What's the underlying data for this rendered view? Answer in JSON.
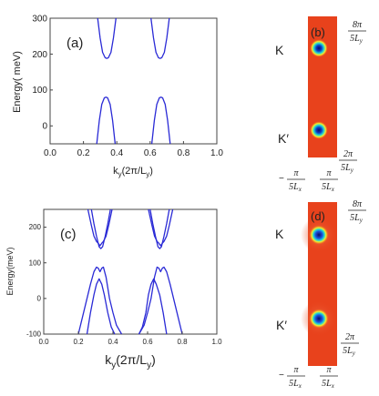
{
  "chart_data": [
    {
      "panel": "a",
      "type": "line",
      "panel_label": "(a)",
      "xlabel_main": "k",
      "xlabel_sub": "y",
      "xlabel_paren_open": "(2π/L",
      "xlabel_paren_close": ")",
      "ylabel": "Energy( meV)",
      "xlim": [
        0.0,
        1.0
      ],
      "ylim": [
        -50,
        300
      ],
      "xticks": [
        "0.0",
        "0.2",
        "0.4",
        "0.6",
        "0.8",
        "1.0"
      ],
      "yticks": [
        "0",
        "100",
        "200",
        "300"
      ],
      "line_color": "#2a2ad6",
      "series": [
        {
          "x": [
            0.28,
            0.295,
            0.31,
            0.325,
            0.335,
            0.345,
            0.36,
            0.375,
            0.39
          ],
          "y": [
            -50,
            15,
            60,
            78,
            80,
            78,
            60,
            15,
            -50
          ]
        },
        {
          "x": [
            0.61,
            0.625,
            0.64,
            0.655,
            0.665,
            0.675,
            0.69,
            0.705,
            0.72
          ],
          "y": [
            -50,
            15,
            60,
            78,
            80,
            78,
            60,
            15,
            -50
          ]
        },
        {
          "x": [
            0.285,
            0.3,
            0.315,
            0.33,
            0.34,
            0.35,
            0.365,
            0.38,
            0.395
          ],
          "y": [
            300,
            245,
            205,
            190,
            188,
            190,
            205,
            245,
            300
          ]
        },
        {
          "x": [
            0.605,
            0.62,
            0.635,
            0.65,
            0.66,
            0.67,
            0.685,
            0.7,
            0.715
          ],
          "y": [
            300,
            245,
            205,
            190,
            188,
            190,
            205,
            245,
            300
          ]
        }
      ]
    },
    {
      "panel": "c",
      "type": "line",
      "panel_label": "(c)",
      "xlabel_main": "k",
      "xlabel_sub": "y",
      "xlabel_paren_open": "(2π/L",
      "xlabel_paren_close": ")",
      "ylabel": "Energy(meV)",
      "xlim": [
        0.0,
        1.0
      ],
      "ylim": [
        -100,
        250
      ],
      "xticks": [
        "0.0",
        "0.2",
        "0.4",
        "0.6",
        "0.8",
        "1.0"
      ],
      "yticks": [
        "-100",
        "0",
        "100",
        "200"
      ],
      "line_color": "#2a2ad6",
      "series": [
        {
          "x": [
            0.2,
            0.24,
            0.27,
            0.29,
            0.305,
            0.315,
            0.325,
            0.335,
            0.345,
            0.36,
            0.38,
            0.4,
            0.42,
            0.45
          ],
          "y": [
            -100,
            -20,
            40,
            75,
            88,
            85,
            75,
            85,
            88,
            60,
            0,
            -40,
            -75,
            -100
          ]
        },
        {
          "x": [
            0.25,
            0.27,
            0.29,
            0.305,
            0.32,
            0.335,
            0.35,
            0.37,
            0.39,
            0.41
          ],
          "y": [
            -100,
            -40,
            10,
            40,
            55,
            40,
            10,
            -40,
            -80,
            -100
          ]
        },
        {
          "x": [
            0.55,
            0.57,
            0.59,
            0.605,
            0.62,
            0.635,
            0.65,
            0.67,
            0.69,
            0.71
          ],
          "y": [
            -100,
            -80,
            -40,
            10,
            40,
            55,
            40,
            10,
            -40,
            -100
          ]
        },
        {
          "x": [
            0.55,
            0.58,
            0.6,
            0.62,
            0.64,
            0.655,
            0.665,
            0.675,
            0.685,
            0.695,
            0.71,
            0.73,
            0.76,
            0.8
          ],
          "y": [
            -100,
            -75,
            -40,
            0,
            60,
            88,
            85,
            75,
            85,
            88,
            75,
            40,
            -20,
            -100
          ]
        },
        {
          "x": [
            0.275,
            0.29,
            0.305,
            0.32,
            0.33,
            0.34,
            0.355,
            0.37,
            0.385
          ],
          "y": [
            250,
            210,
            175,
            145,
            140,
            145,
            175,
            210,
            250
          ]
        },
        {
          "x": [
            0.255,
            0.275,
            0.29,
            0.305,
            0.315,
            0.325,
            0.335,
            0.345,
            0.36,
            0.375,
            0.395
          ],
          "y": [
            250,
            205,
            175,
            160,
            155,
            148,
            155,
            160,
            175,
            205,
            250
          ]
        },
        {
          "x": [
            0.615,
            0.63,
            0.645,
            0.66,
            0.67,
            0.68,
            0.695,
            0.71,
            0.725
          ],
          "y": [
            250,
            210,
            175,
            145,
            140,
            145,
            175,
            210,
            250
          ]
        },
        {
          "x": [
            0.605,
            0.625,
            0.64,
            0.655,
            0.665,
            0.675,
            0.685,
            0.695,
            0.71,
            0.725,
            0.745
          ],
          "y": [
            250,
            205,
            175,
            160,
            155,
            148,
            155,
            160,
            175,
            205,
            250
          ]
        }
      ]
    },
    {
      "panel": "b",
      "type": "heatmap",
      "panel_label": "(b)",
      "valley_top": "K",
      "valley_bottom": "K′",
      "background_color": "#e8421c",
      "y_top_num": "8π",
      "y_top_den": "5L",
      "y_top_den_sub": "y",
      "y_bot_num": "2π",
      "y_bot_den": "5L",
      "y_bot_den_sub": "y",
      "x_left_sign": "−",
      "x_left_num": "π",
      "x_left_den": "5L",
      "x_left_den_sub": "x",
      "x_right_num": "π",
      "x_right_den": "5L",
      "x_right_den_sub": "x",
      "spots": [
        {
          "valley": "K",
          "x": 0.0,
          "y": 0.79
        },
        {
          "valley": "K′",
          "x": 0.0,
          "y": 0.21
        }
      ]
    },
    {
      "panel": "d",
      "type": "heatmap",
      "panel_label": "(d)",
      "valley_top": "K",
      "valley_bottom": "K′",
      "background_color": "#e8421c",
      "y_top_num": "8π",
      "y_top_den": "5L",
      "y_top_den_sub": "y",
      "y_bot_num": "2π",
      "y_bot_den": "5L",
      "y_bot_den_sub": "y",
      "x_left_sign": "−",
      "x_left_num": "π",
      "x_left_den": "5L",
      "x_left_den_sub": "x",
      "x_right_num": "π",
      "x_right_den": "5L",
      "x_right_den_sub": "x",
      "spots": [
        {
          "valley": "K",
          "x": 0.0,
          "y": 0.8
        },
        {
          "valley": "K′",
          "x": 0.0,
          "y": 0.25
        }
      ]
    }
  ]
}
